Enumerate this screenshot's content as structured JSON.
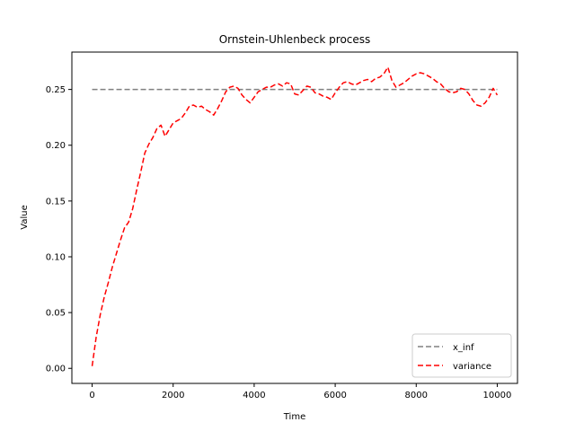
{
  "chart_data": {
    "type": "line",
    "title": "Ornstein-Uhlenbeck process",
    "xlabel": "Time",
    "ylabel": "Value",
    "xlim": [
      -500,
      10500
    ],
    "ylim": [
      -0.0135,
      0.2835
    ],
    "xticks": [
      0,
      2000,
      4000,
      6000,
      8000,
      10000
    ],
    "xtick_labels": [
      "0",
      "2000",
      "4000",
      "6000",
      "8000",
      "10000"
    ],
    "yticks": [
      0.0,
      0.05,
      0.1,
      0.15,
      0.2,
      0.25
    ],
    "ytick_labels": [
      "0.00",
      "0.05",
      "0.10",
      "0.15",
      "0.20",
      "0.25"
    ],
    "grid": false,
    "legend_position": "lower-right",
    "series": [
      {
        "name": "x_inf",
        "color": "#808080",
        "style": "dashed",
        "x": [
          0,
          10000
        ],
        "y": [
          0.25,
          0.25
        ]
      },
      {
        "name": "variance",
        "color": "#ff0000",
        "style": "dashed",
        "x": [
          0,
          100,
          200,
          300,
          400,
          500,
          600,
          700,
          800,
          900,
          1000,
          1100,
          1200,
          1300,
          1400,
          1500,
          1600,
          1700,
          1800,
          1900,
          2000,
          2100,
          2200,
          2300,
          2400,
          2500,
          2600,
          2700,
          2800,
          2900,
          3000,
          3100,
          3200,
          3300,
          3400,
          3500,
          3600,
          3700,
          3800,
          3900,
          4000,
          4100,
          4200,
          4300,
          4400,
          4500,
          4600,
          4700,
          4800,
          4900,
          5000,
          5100,
          5200,
          5300,
          5400,
          5500,
          5600,
          5700,
          5800,
          5900,
          6000,
          6100,
          6200,
          6300,
          6400,
          6500,
          6600,
          6700,
          6800,
          6900,
          7000,
          7100,
          7200,
          7300,
          7400,
          7500,
          7600,
          7700,
          7800,
          7900,
          8000,
          8100,
          8200,
          8300,
          8400,
          8500,
          8600,
          8700,
          8800,
          8900,
          9000,
          9100,
          9200,
          9300,
          9400,
          9500,
          9600,
          9700,
          9800,
          9900,
          10000
        ],
        "y": [
          0.002,
          0.028,
          0.048,
          0.064,
          0.077,
          0.091,
          0.103,
          0.115,
          0.126,
          0.131,
          0.143,
          0.16,
          0.176,
          0.193,
          0.201,
          0.207,
          0.215,
          0.218,
          0.208,
          0.214,
          0.22,
          0.222,
          0.224,
          0.229,
          0.235,
          0.236,
          0.234,
          0.235,
          0.232,
          0.23,
          0.227,
          0.233,
          0.24,
          0.248,
          0.252,
          0.253,
          0.251,
          0.245,
          0.241,
          0.238,
          0.243,
          0.248,
          0.25,
          0.252,
          0.252,
          0.254,
          0.255,
          0.253,
          0.256,
          0.255,
          0.246,
          0.245,
          0.249,
          0.253,
          0.252,
          0.247,
          0.246,
          0.244,
          0.243,
          0.241,
          0.247,
          0.252,
          0.256,
          0.257,
          0.255,
          0.254,
          0.256,
          0.258,
          0.259,
          0.257,
          0.26,
          0.261,
          0.264,
          0.27,
          0.258,
          0.252,
          0.254,
          0.256,
          0.259,
          0.262,
          0.264,
          0.265,
          0.264,
          0.262,
          0.26,
          0.257,
          0.255,
          0.251,
          0.248,
          0.247,
          0.248,
          0.251,
          0.25,
          0.246,
          0.24,
          0.236,
          0.235,
          0.238,
          0.243,
          0.251,
          0.245
        ]
      }
    ]
  }
}
